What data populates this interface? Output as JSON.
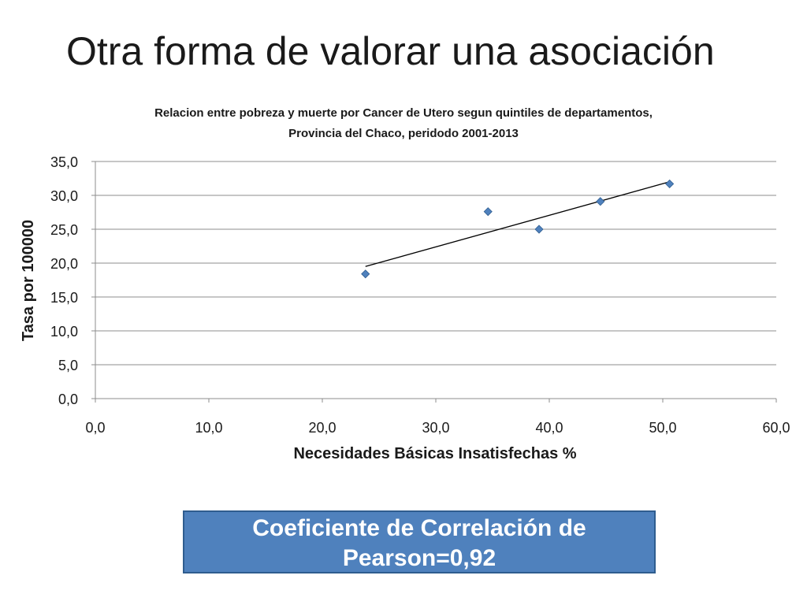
{
  "slide": {
    "title": "Otra forma de valorar una asociación"
  },
  "chart_data": {
    "type": "scatter",
    "title_line1": "Relacion entre pobreza y muerte por Cancer de Utero segun quintiles de departamentos,",
    "title_line2": "Provincia del Chaco, peridodo 2001-2013",
    "xlabel": "Necesidades Básicas Insatisfechas %",
    "ylabel": "Tasa por 100000",
    "xlim": [
      0,
      60
    ],
    "ylim": [
      0,
      35
    ],
    "x_ticks": [
      "0,0",
      "10,0",
      "20,0",
      "30,0",
      "40,0",
      "50,0",
      "60,0"
    ],
    "y_ticks": [
      "0,0",
      "5,0",
      "10,0",
      "15,0",
      "20,0",
      "25,0",
      "30,0",
      "35,0"
    ],
    "grid": "horizontal",
    "points": [
      {
        "x": 23.8,
        "y": 18.4
      },
      {
        "x": 34.6,
        "y": 27.6
      },
      {
        "x": 39.1,
        "y": 25.0
      },
      {
        "x": 44.5,
        "y": 29.1
      },
      {
        "x": 50.6,
        "y": 31.7
      }
    ],
    "trendline": {
      "x_start": 23.8,
      "y_start": 19.5,
      "x_end": 50.6,
      "y_end": 32.0
    },
    "marker_color": "#4f81bd",
    "trend_color": "#000000"
  },
  "pearson": {
    "line1": "Coeficiente de Correlación de",
    "line2": "Pearson=0,92",
    "box_color": "#4f81bd"
  }
}
